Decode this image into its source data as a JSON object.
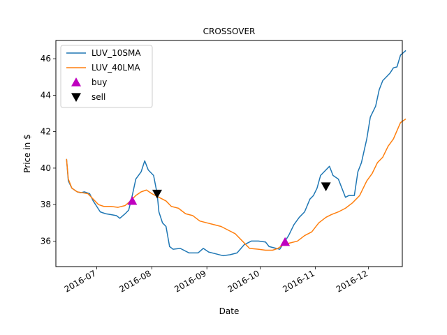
{
  "chart_data": {
    "type": "line",
    "title": "CROSSOVER",
    "xlabel": "Date",
    "ylabel": "Price in $",
    "xlim": [
      "2016-06-08",
      "2016-12-20"
    ],
    "ylim": [
      34.6,
      47.0
    ],
    "grid": false,
    "legend_position": "top-left",
    "x_ticks": [
      {
        "date": "2016-07-01",
        "label": "2016-07"
      },
      {
        "date": "2016-08-01",
        "label": "2016-08"
      },
      {
        "date": "2016-09-01",
        "label": "2016-09"
      },
      {
        "date": "2016-10-01",
        "label": "2016-10"
      },
      {
        "date": "2016-11-01",
        "label": "2016-11"
      },
      {
        "date": "2016-12-01",
        "label": "2016-12"
      }
    ],
    "y_ticks": [
      36,
      38,
      40,
      42,
      44,
      46
    ],
    "series": [
      {
        "name": "LUV_10SMA",
        "color": "#1f77b4",
        "points": [
          [
            "2016-06-14",
            40.5
          ],
          [
            "2016-06-15",
            39.3
          ],
          [
            "2016-06-17",
            38.9
          ],
          [
            "2016-06-20",
            38.7
          ],
          [
            "2016-06-22",
            38.65
          ],
          [
            "2016-06-24",
            38.7
          ],
          [
            "2016-06-27",
            38.6
          ],
          [
            "2016-06-29",
            38.2
          ],
          [
            "2016-07-01",
            37.9
          ],
          [
            "2016-07-03",
            37.6
          ],
          [
            "2016-07-06",
            37.5
          ],
          [
            "2016-07-09",
            37.45
          ],
          [
            "2016-07-12",
            37.4
          ],
          [
            "2016-07-14",
            37.25
          ],
          [
            "2016-07-17",
            37.5
          ],
          [
            "2016-07-19",
            37.7
          ],
          [
            "2016-07-21",
            38.5
          ],
          [
            "2016-07-23",
            39.4
          ],
          [
            "2016-07-26",
            39.8
          ],
          [
            "2016-07-28",
            40.4
          ],
          [
            "2016-07-30",
            39.9
          ],
          [
            "2016-08-02",
            39.6
          ],
          [
            "2016-08-04",
            38.6
          ],
          [
            "2016-08-05",
            37.6
          ],
          [
            "2016-08-07",
            37.0
          ],
          [
            "2016-08-09",
            36.8
          ],
          [
            "2016-08-11",
            35.7
          ],
          [
            "2016-08-13",
            35.55
          ],
          [
            "2016-08-17",
            35.6
          ],
          [
            "2016-08-22",
            35.35
          ],
          [
            "2016-08-27",
            35.35
          ],
          [
            "2016-08-30",
            35.6
          ],
          [
            "2016-09-02",
            35.4
          ],
          [
            "2016-09-06",
            35.3
          ],
          [
            "2016-09-10",
            35.2
          ],
          [
            "2016-09-14",
            35.25
          ],
          [
            "2016-09-18",
            35.35
          ],
          [
            "2016-09-22",
            35.8
          ],
          [
            "2016-09-26",
            36.0
          ],
          [
            "2016-09-30",
            36.0
          ],
          [
            "2016-10-04",
            35.95
          ],
          [
            "2016-10-06",
            35.7
          ],
          [
            "2016-10-10",
            35.6
          ],
          [
            "2016-10-12",
            35.55
          ],
          [
            "2016-10-14",
            35.85
          ],
          [
            "2016-10-17",
            36.3
          ],
          [
            "2016-10-20",
            36.9
          ],
          [
            "2016-10-23",
            37.3
          ],
          [
            "2016-10-26",
            37.6
          ],
          [
            "2016-10-29",
            38.3
          ],
          [
            "2016-10-31",
            38.5
          ],
          [
            "2016-11-02",
            38.9
          ],
          [
            "2016-11-04",
            39.6
          ],
          [
            "2016-11-07",
            39.9
          ],
          [
            "2016-11-09",
            40.1
          ],
          [
            "2016-11-11",
            39.6
          ],
          [
            "2016-11-14",
            39.4
          ],
          [
            "2016-11-16",
            38.9
          ],
          [
            "2016-11-18",
            38.4
          ],
          [
            "2016-11-20",
            38.5
          ],
          [
            "2016-11-23",
            38.5
          ],
          [
            "2016-11-25",
            39.8
          ],
          [
            "2016-11-27",
            40.3
          ],
          [
            "2016-11-30",
            41.6
          ],
          [
            "2016-12-02",
            42.8
          ],
          [
            "2016-12-05",
            43.4
          ],
          [
            "2016-12-07",
            44.3
          ],
          [
            "2016-12-09",
            44.8
          ],
          [
            "2016-12-11",
            45.0
          ],
          [
            "2016-12-13",
            45.2
          ],
          [
            "2016-12-15",
            45.5
          ],
          [
            "2016-12-17",
            45.55
          ],
          [
            "2016-12-19",
            46.2
          ],
          [
            "2016-12-22",
            46.45
          ]
        ]
      },
      {
        "name": "LUV_40LMA",
        "color": "#ff7f0e",
        "points": [
          [
            "2016-06-14",
            40.5
          ],
          [
            "2016-06-15",
            39.4
          ],
          [
            "2016-06-17",
            38.9
          ],
          [
            "2016-06-20",
            38.7
          ],
          [
            "2016-06-23",
            38.65
          ],
          [
            "2016-06-26",
            38.6
          ],
          [
            "2016-06-29",
            38.3
          ],
          [
            "2016-07-02",
            38.0
          ],
          [
            "2016-07-05",
            37.9
          ],
          [
            "2016-07-09",
            37.9
          ],
          [
            "2016-07-13",
            37.85
          ],
          [
            "2016-07-17",
            37.95
          ],
          [
            "2016-07-20",
            38.2
          ],
          [
            "2016-07-23",
            38.5
          ],
          [
            "2016-07-26",
            38.7
          ],
          [
            "2016-07-29",
            38.8
          ],
          [
            "2016-08-01",
            38.6
          ],
          [
            "2016-08-05",
            38.4
          ],
          [
            "2016-08-09",
            38.2
          ],
          [
            "2016-08-12",
            37.9
          ],
          [
            "2016-08-16",
            37.8
          ],
          [
            "2016-08-20",
            37.5
          ],
          [
            "2016-08-24",
            37.4
          ],
          [
            "2016-08-28",
            37.1
          ],
          [
            "2016-09-01",
            37.0
          ],
          [
            "2016-09-05",
            36.9
          ],
          [
            "2016-09-09",
            36.8
          ],
          [
            "2016-09-13",
            36.6
          ],
          [
            "2016-09-17",
            36.4
          ],
          [
            "2016-09-21",
            36.0
          ],
          [
            "2016-09-25",
            35.6
          ],
          [
            "2016-09-30",
            35.55
          ],
          [
            "2016-10-04",
            35.5
          ],
          [
            "2016-10-08",
            35.5
          ],
          [
            "2016-10-11",
            35.6
          ],
          [
            "2016-10-14",
            35.8
          ],
          [
            "2016-10-18",
            35.9
          ],
          [
            "2016-10-22",
            36.0
          ],
          [
            "2016-10-26",
            36.3
          ],
          [
            "2016-10-30",
            36.5
          ],
          [
            "2016-11-03",
            37.0
          ],
          [
            "2016-11-07",
            37.3
          ],
          [
            "2016-11-10",
            37.45
          ],
          [
            "2016-11-14",
            37.6
          ],
          [
            "2016-11-18",
            37.8
          ],
          [
            "2016-11-22",
            38.1
          ],
          [
            "2016-11-26",
            38.5
          ],
          [
            "2016-11-30",
            39.3
          ],
          [
            "2016-12-03",
            39.7
          ],
          [
            "2016-12-06",
            40.3
          ],
          [
            "2016-12-09",
            40.6
          ],
          [
            "2016-12-12",
            41.2
          ],
          [
            "2016-12-15",
            41.6
          ],
          [
            "2016-12-19",
            42.5
          ],
          [
            "2016-12-22",
            42.7
          ]
        ]
      }
    ],
    "markers": [
      {
        "name": "buy",
        "color": "#bf00bf",
        "shape": "triangle-up",
        "points": [
          [
            "2016-07-21",
            38.2
          ],
          [
            "2016-10-15",
            35.95
          ]
        ]
      },
      {
        "name": "sell",
        "color": "#000000",
        "shape": "triangle-down",
        "points": [
          [
            "2016-08-04",
            38.6
          ],
          [
            "2016-11-07",
            39.0
          ]
        ]
      }
    ]
  }
}
